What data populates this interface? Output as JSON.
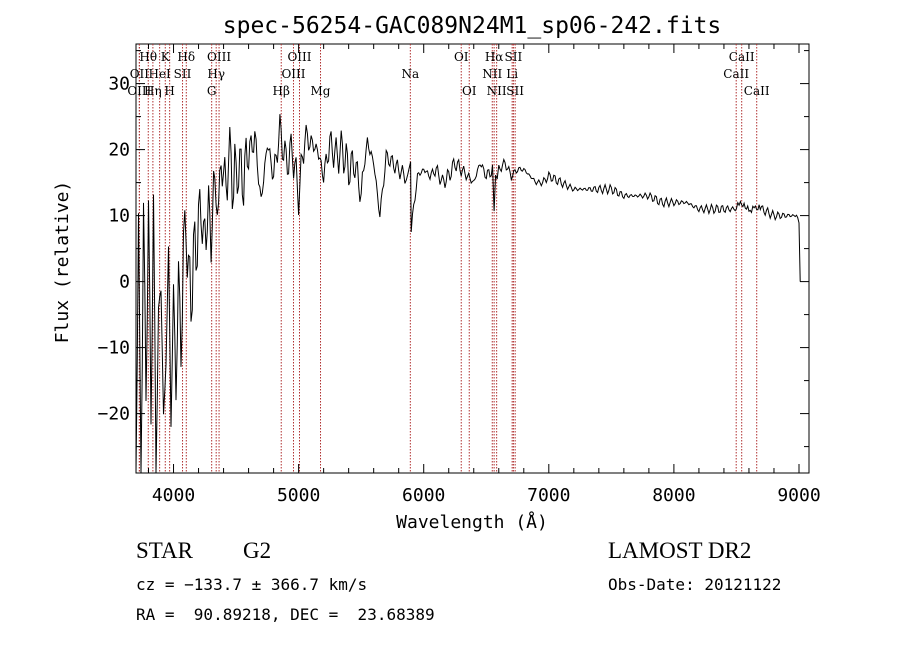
{
  "chart_data": {
    "type": "line",
    "title": "spec-56254-GAC089N24M1_sp06-242.fits",
    "xlabel": "Wavelength (Å)",
    "ylabel": "Flux (relative)",
    "xlim": [
      3700,
      9080
    ],
    "ylim": [
      -29,
      36
    ],
    "xticks": [
      4000,
      5000,
      6000,
      7000,
      8000,
      9000
    ],
    "yticks": [
      -20,
      -10,
      0,
      10,
      20,
      30
    ],
    "grid": false,
    "legend": "none",
    "line_color": "#000000",
    "marker_color": "#b03030",
    "series": [
      {
        "x": [
          3700,
          3720,
          3740,
          3760,
          3780,
          3800,
          3820,
          3840,
          3860,
          3880,
          3900,
          3920,
          3940,
          3960,
          3980,
          4000,
          4020,
          4040,
          4060,
          4080,
          4100,
          4120,
          4140,
          4160,
          4180,
          4200,
          4220,
          4240,
          4260,
          4280,
          4300,
          4320,
          4340,
          4360,
          4380,
          4400,
          4420,
          4440,
          4460,
          4480,
          4500,
          4520,
          4540,
          4560,
          4580,
          4600,
          4650,
          4700,
          4750,
          4800,
          4850,
          4900,
          4950,
          5000,
          5050,
          5100,
          5150,
          5200,
          5250,
          5300,
          5350,
          5400,
          5450,
          5500,
          5530,
          5550,
          5600,
          5650,
          5700,
          5750,
          5800,
          5850,
          5895,
          5900,
          5950,
          6000,
          6050,
          6100,
          6150,
          6200,
          6250,
          6300,
          6350,
          6400,
          6450,
          6500,
          6550,
          6563,
          6575,
          6600,
          6650,
          6700,
          6750,
          6800,
          6850,
          6900,
          6950,
          7000,
          7100,
          7200,
          7300,
          7400,
          7500,
          7600,
          7700,
          7800,
          7900,
          8000,
          8100,
          8200,
          8300,
          8400,
          8500,
          8542,
          8600,
          8662,
          8700,
          8800,
          8900,
          8980,
          9000,
          9010
        ],
        "y": [
          -25,
          5,
          -28,
          8,
          -15,
          10,
          -20,
          12,
          -28,
          -5,
          0,
          -22,
          -10,
          2,
          -18,
          -5,
          -13,
          -2,
          -8,
          3,
          10,
          1,
          -4,
          6,
          2,
          12,
          8,
          10,
          4,
          15,
          3,
          16,
          13,
          10,
          20,
          14,
          17,
          16,
          21,
          12,
          18,
          15,
          19,
          13,
          20,
          19,
          22,
          12,
          21,
          16,
          23,
          18,
          20,
          13,
          22,
          21,
          20,
          16,
          21,
          19,
          20,
          17,
          18,
          13,
          19,
          21,
          18,
          10,
          19,
          18,
          17,
          16,
          18,
          8,
          16,
          17,
          16,
          17,
          15,
          16,
          18,
          17,
          16,
          15,
          18,
          16,
          17,
          10,
          16,
          17,
          18,
          16,
          17,
          17,
          16,
          15,
          15,
          16,
          15,
          14,
          14,
          14,
          14,
          13,
          13,
          13,
          12,
          12,
          12,
          11,
          11,
          11,
          11,
          12,
          11,
          11,
          11,
          10,
          10,
          10,
          9,
          0
        ]
      }
    ],
    "line_markers": [
      {
        "label": "Hθ",
        "wl": 3798,
        "row": 1
      },
      {
        "label": "OII",
        "wl": 3727,
        "row": 2
      },
      {
        "label": "OIII",
        "wl": 3727,
        "row": 3
      },
      {
        "label": "K",
        "wl": 3934,
        "row": 1
      },
      {
        "label": "HeI",
        "wl": 3889,
        "row": 2
      },
      {
        "label": "Hη",
        "wl": 3835,
        "row": 3
      },
      {
        "label": "Hδ",
        "wl": 4102,
        "row": 1
      },
      {
        "label": "SII",
        "wl": 4072,
        "row": 2
      },
      {
        "label": "H",
        "wl": 3969,
        "row": 3
      },
      {
        "label": "OIII",
        "wl": 4364,
        "row": 1
      },
      {
        "label": "Hγ",
        "wl": 4341,
        "row": 2
      },
      {
        "label": "G",
        "wl": 4305,
        "row": 3
      },
      {
        "label": "Hβ",
        "wl": 4861,
        "row": 3
      },
      {
        "label": "OIII",
        "wl": 5007,
        "row": 1
      },
      {
        "label": "OIII",
        "wl": 4959,
        "row": 2
      },
      {
        "label": "Mg",
        "wl": 5175,
        "row": 3
      },
      {
        "label": "Na",
        "wl": 5893,
        "row": 2
      },
      {
        "label": "OI",
        "wl": 6300,
        "row": 1
      },
      {
        "label": "OI",
        "wl": 6364,
        "row": 3
      },
      {
        "label": "Hα",
        "wl": 6563,
        "row": 1
      },
      {
        "label": "NII",
        "wl": 6548,
        "row": 2
      },
      {
        "label": "NII",
        "wl": 6583,
        "row": 3
      },
      {
        "label": "SII",
        "wl": 6717,
        "row": 1
      },
      {
        "label": "Li",
        "wl": 6707,
        "row": 2
      },
      {
        "label": "SII",
        "wl": 6731,
        "row": 3
      },
      {
        "label": "CaII",
        "wl": 8542,
        "row": 1
      },
      {
        "label": "CaII",
        "wl": 8498,
        "row": 2
      },
      {
        "label": "CaII",
        "wl": 8662,
        "row": 3
      }
    ]
  },
  "info": {
    "object_class": "STAR",
    "subclass": "G2",
    "survey": "LAMOST DR2",
    "cz_line": "cz = −133.7 ± 366.7 km/s",
    "obs_date_line": "Obs-Date: 20121122",
    "radec_line": "RA =  90.89218, DEC =  23.68389"
  }
}
